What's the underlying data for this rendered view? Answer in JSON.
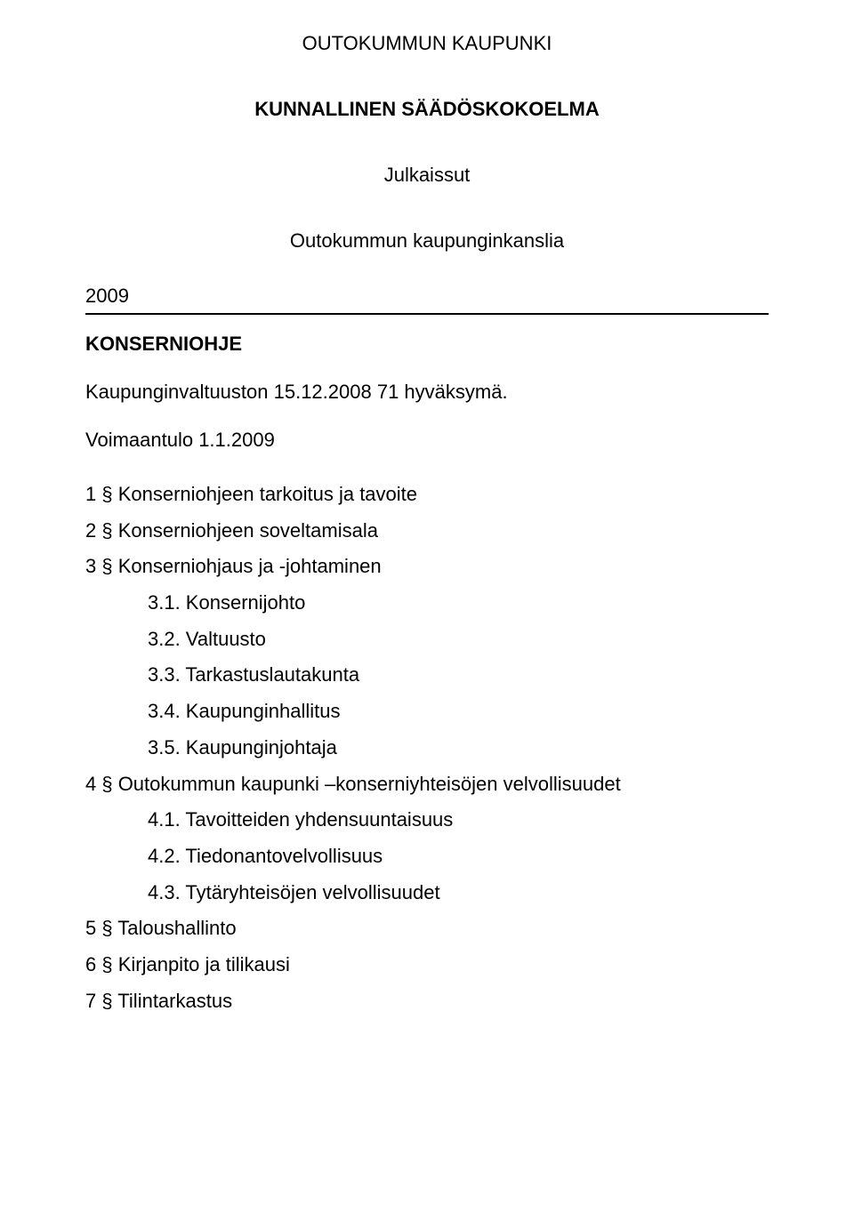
{
  "header": {
    "title": "OUTOKUMMUN KAUPUNKI",
    "subtitle": "KUNNALLINEN SÄÄDÖSKOKOELMA",
    "published_label": "Julkaissut",
    "published_by": "Outokummun kaupunginkanslia",
    "year": "2009"
  },
  "doc": {
    "heading": "KONSERNIOHJE",
    "approval": "Kaupunginvaltuuston 15.12.2008 71 hyväksymä.",
    "effective": "Voimaantulo 1.1.2009"
  },
  "toc": {
    "s1": "1 § Konserniohjeen tarkoitus ja tavoite",
    "s2": "2 § Konserniohjeen soveltamisala",
    "s3": "3 § Konserniohjaus ja -johtaminen",
    "s3_1": "3.1. Konsernijohto",
    "s3_2": "3.2. Valtuusto",
    "s3_3": "3.3. Tarkastuslautakunta",
    "s3_4": "3.4. Kaupunginhallitus",
    "s3_5": "3.5. Kaupunginjohtaja",
    "s4": "4 § Outokummun kaupunki –konserniyhteisöjen velvollisuudet",
    "s4_1": "4.1. Tavoitteiden yhdensuuntaisuus",
    "s4_2": "4.2. Tiedonantovelvollisuus",
    "s4_3": "4.3. Tytäryhteisöjen velvollisuudet",
    "s5": "5 § Taloushallinto",
    "s6": "6 § Kirjanpito ja tilikausi",
    "s7": "7 § Tilintarkastus"
  }
}
